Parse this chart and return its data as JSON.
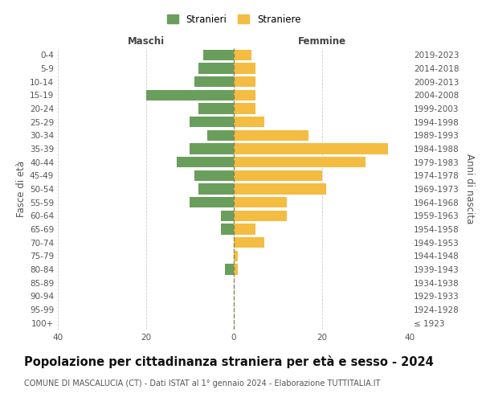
{
  "age_groups": [
    "100+",
    "95-99",
    "90-94",
    "85-89",
    "80-84",
    "75-79",
    "70-74",
    "65-69",
    "60-64",
    "55-59",
    "50-54",
    "45-49",
    "40-44",
    "35-39",
    "30-34",
    "25-29",
    "20-24",
    "15-19",
    "10-14",
    "5-9",
    "0-4"
  ],
  "birth_years": [
    "≤ 1923",
    "1924-1928",
    "1929-1933",
    "1934-1938",
    "1939-1943",
    "1944-1948",
    "1949-1953",
    "1954-1958",
    "1959-1963",
    "1964-1968",
    "1969-1973",
    "1974-1978",
    "1979-1983",
    "1984-1988",
    "1989-1993",
    "1994-1998",
    "1999-2003",
    "2004-2008",
    "2009-2013",
    "2014-2018",
    "2019-2023"
  ],
  "maschi": [
    0,
    0,
    0,
    0,
    2,
    0,
    0,
    3,
    3,
    10,
    8,
    9,
    13,
    10,
    6,
    10,
    8,
    20,
    9,
    8,
    7
  ],
  "femmine": [
    0,
    0,
    0,
    0,
    1,
    1,
    7,
    5,
    12,
    12,
    21,
    20,
    30,
    35,
    17,
    7,
    5,
    5,
    5,
    5,
    4
  ],
  "maschi_color": "#6a9e5c",
  "femmine_color": "#f5bc42",
  "background_color": "#ffffff",
  "grid_color": "#cccccc",
  "title": "Popolazione per cittadinanza straniera per età e sesso - 2024",
  "subtitle": "COMUNE DI MASCALUCIA (CT) - Dati ISTAT al 1° gennaio 2024 - Elaborazione TUTTITALIA.IT",
  "xlabel_left": "Maschi",
  "xlabel_right": "Femmine",
  "ylabel_left": "Fasce di età",
  "ylabel_right": "Anni di nascita",
  "legend_maschi": "Stranieri",
  "legend_femmine": "Straniere",
  "xlim": 40,
  "bar_height": 0.8,
  "center_line_color": "#888855",
  "title_fontsize": 10.5,
  "subtitle_fontsize": 7.0,
  "tick_fontsize": 7.5,
  "label_fontsize": 8.5
}
